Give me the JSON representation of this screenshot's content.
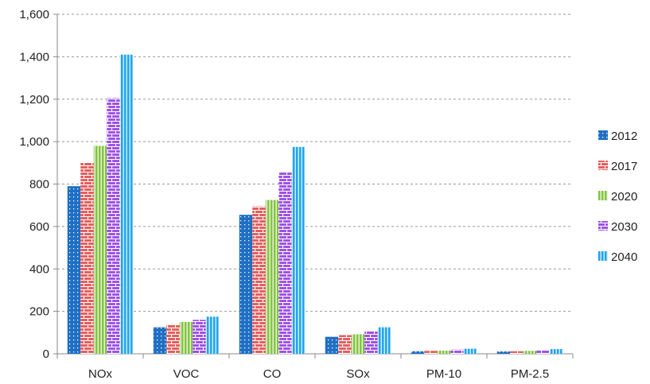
{
  "chart_data": {
    "type": "bar",
    "categories": [
      "NOx",
      "VOC",
      "CO",
      "SOx",
      "PM-10",
      "PM-2.5"
    ],
    "series": [
      {
        "name": "2012",
        "color": "#1F6FC3",
        "pattern": "dots",
        "values": [
          790,
          125,
          655,
          80,
          12,
          11
        ]
      },
      {
        "name": "2017",
        "color": "#E65E5E",
        "pattern": "bricks",
        "values": [
          900,
          135,
          695,
          88,
          14,
          12
        ]
      },
      {
        "name": "2020",
        "color": "#84C441",
        "pattern": "vertical-lines",
        "values": [
          980,
          150,
          725,
          92,
          15,
          14
        ]
      },
      {
        "name": "2030",
        "color": "#9E52E8",
        "pattern": "bricks",
        "values": [
          1205,
          160,
          855,
          105,
          20,
          18
        ]
      },
      {
        "name": "2040",
        "color": "#1FA5EE",
        "pattern": "vertical-lines",
        "values": [
          1410,
          175,
          975,
          125,
          24,
          22
        ]
      }
    ],
    "ylim": [
      0,
      1600
    ],
    "yticks": [
      0,
      200,
      400,
      600,
      800,
      1000,
      1200,
      1400,
      1600
    ],
    "ytick_labels": [
      "0",
      "200",
      "400",
      "600",
      "800",
      "1,000",
      "1,200",
      "1,400",
      "1,600"
    ],
    "grid": true,
    "grid_style": "dashed",
    "legend_position": "right",
    "title": "",
    "xlabel": "",
    "ylabel": ""
  }
}
